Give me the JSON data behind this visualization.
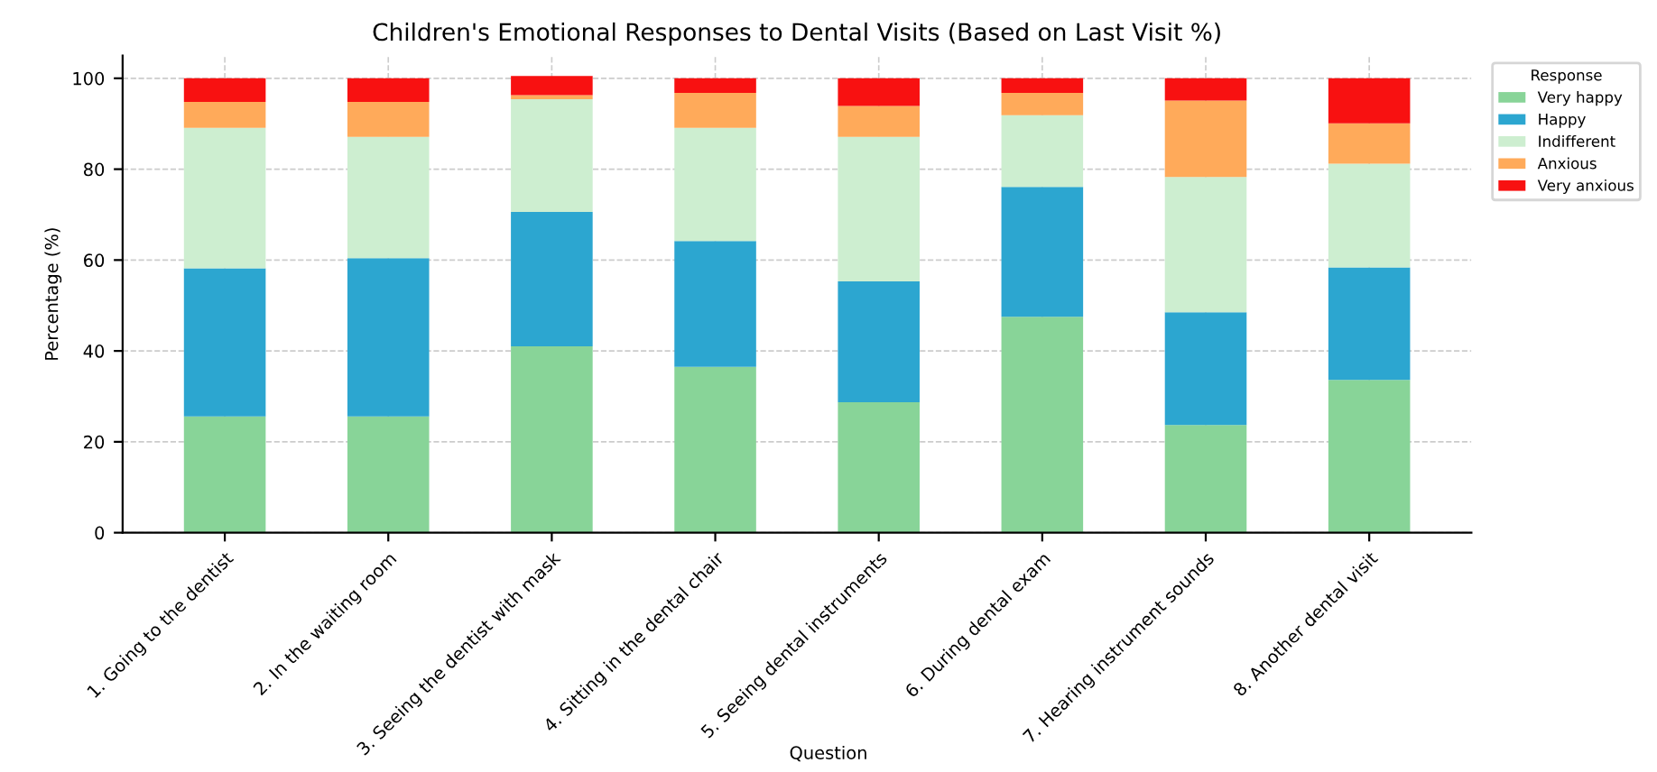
{
  "chart_data": {
    "type": "bar",
    "stacked": true,
    "title": "Children's Emotional Responses to Dental Visits (Based on Last Visit %)",
    "xlabel": "Question",
    "ylabel": "Percentage (%)",
    "legend_title": "Response",
    "legend": "top right",
    "grid": true,
    "categories": [
      "1. Going to the dentist",
      "2. In the waiting room",
      "3. Seeing the dentist with mask",
      "4. Sitting in the dental chair",
      "5. Seeing dental instruments",
      "6. During dental exam",
      "7. Hearing instrument sounds",
      "8. Another dental visit"
    ],
    "ylim": [
      0,
      105
    ],
    "yticks": [
      0,
      20,
      40,
      60,
      80,
      100
    ],
    "series": [
      {
        "name": "Very happy",
        "color": "#88d498",
        "values": [
          25.6,
          25.6,
          41.0,
          36.5,
          28.7,
          47.5,
          23.7,
          33.6
        ]
      },
      {
        "name": "Happy",
        "color": "#2ca6d0",
        "values": [
          32.6,
          34.8,
          29.6,
          27.7,
          26.6,
          28.6,
          24.8,
          24.8
        ]
      },
      {
        "name": "Indifferent",
        "color": "#cdeed0",
        "values": [
          30.9,
          26.7,
          24.8,
          24.9,
          31.8,
          15.8,
          29.8,
          22.8
        ]
      },
      {
        "name": "Anxious",
        "color": "#ffaa5a",
        "values": [
          5.7,
          7.7,
          0.9,
          7.7,
          6.8,
          4.9,
          16.8,
          8.9
        ]
      },
      {
        "name": "Very anxious",
        "color": "#f81111",
        "values": [
          5.2,
          5.2,
          4.2,
          3.2,
          6.1,
          3.2,
          4.9,
          9.9
        ]
      }
    ]
  }
}
